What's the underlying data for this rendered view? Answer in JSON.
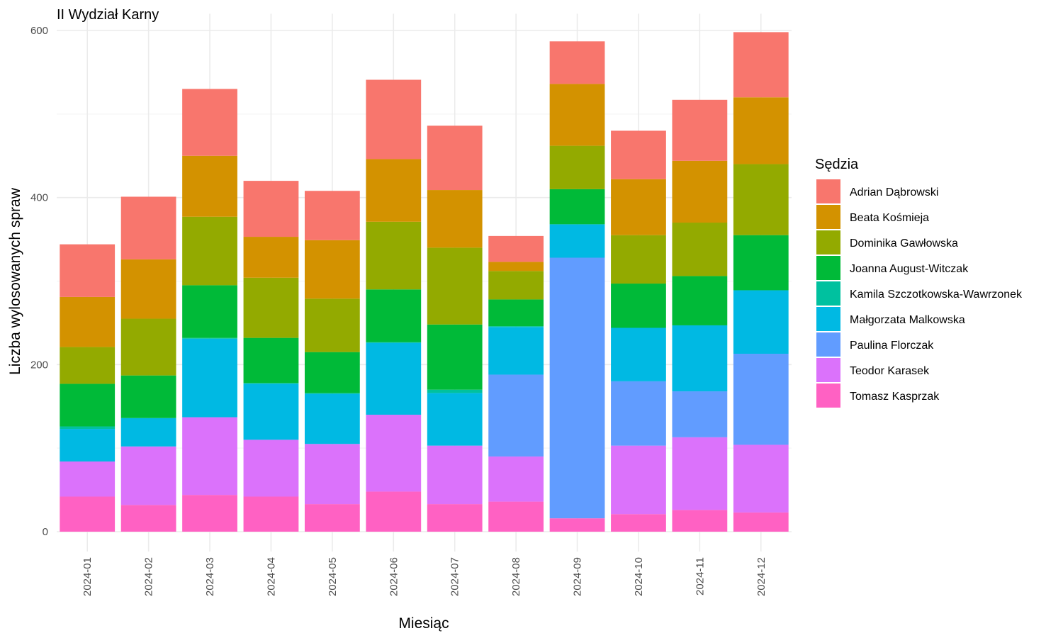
{
  "chart_data": {
    "type": "bar",
    "stacked": true,
    "title": "II Wydział Karny",
    "xlabel": "Miesiąc",
    "ylabel": "Liczba wylosowanych spraw",
    "ylim": [
      0,
      620
    ],
    "yticks": [
      0,
      200,
      400,
      600
    ],
    "grid": true,
    "legend_title": "Sędzia",
    "legend_position": "right",
    "categories": [
      "2024-01",
      "2024-02",
      "2024-03",
      "2024-04",
      "2024-05",
      "2024-06",
      "2024-07",
      "2024-08",
      "2024-09",
      "2024-10",
      "2024-11",
      "2024-12"
    ],
    "series": [
      {
        "name": "Tomasz Kasprzak",
        "color": "#FF61C3",
        "values": [
          42,
          32,
          44,
          42,
          33,
          48,
          33,
          36,
          16,
          21,
          26,
          23
        ]
      },
      {
        "name": "Teodor Karasek",
        "color": "#DB72FB",
        "values": [
          42,
          70,
          93,
          68,
          72,
          92,
          70,
          54,
          0,
          82,
          87,
          81
        ]
      },
      {
        "name": "Paulina Florczak",
        "color": "#619CFF",
        "values": [
          0,
          0,
          0,
          0,
          0,
          0,
          0,
          98,
          312,
          77,
          55,
          109
        ]
      },
      {
        "name": "Małgorzata Malkowska",
        "color": "#00B9E3",
        "values": [
          39,
          34,
          94,
          67,
          60,
          86,
          63,
          57,
          40,
          64,
          79,
          76
        ]
      },
      {
        "name": "Kamila Szczotkowska-Wawrzonek",
        "color": "#00C19F",
        "values": [
          3,
          0,
          1,
          1,
          1,
          1,
          4,
          1,
          0,
          0,
          0,
          0
        ]
      },
      {
        "name": "Joanna August-Witczak",
        "color": "#00BA38",
        "values": [
          51,
          51,
          63,
          54,
          49,
          63,
          78,
          32,
          42,
          53,
          59,
          66
        ]
      },
      {
        "name": "Dominika Gawłowska",
        "color": "#93AA00",
        "values": [
          44,
          68,
          82,
          72,
          64,
          81,
          92,
          34,
          52,
          58,
          64,
          85
        ]
      },
      {
        "name": "Beata Kośmieja",
        "color": "#D39200",
        "values": [
          60,
          71,
          73,
          49,
          70,
          75,
          69,
          11,
          74,
          67,
          74,
          80
        ]
      },
      {
        "name": "Adrian Dąbrowski",
        "color": "#F8766D",
        "values": [
          63,
          75,
          80,
          67,
          59,
          95,
          77,
          31,
          51,
          58,
          73,
          78
        ]
      }
    ],
    "legend_order": [
      "Adrian Dąbrowski",
      "Beata Kośmieja",
      "Dominika Gawłowska",
      "Joanna August-Witczak",
      "Kamila Szczotkowska-Wawrzonek",
      "Małgorzata Malkowska",
      "Paulina Florczak",
      "Teodor Karasek",
      "Tomasz Kasprzak"
    ]
  }
}
